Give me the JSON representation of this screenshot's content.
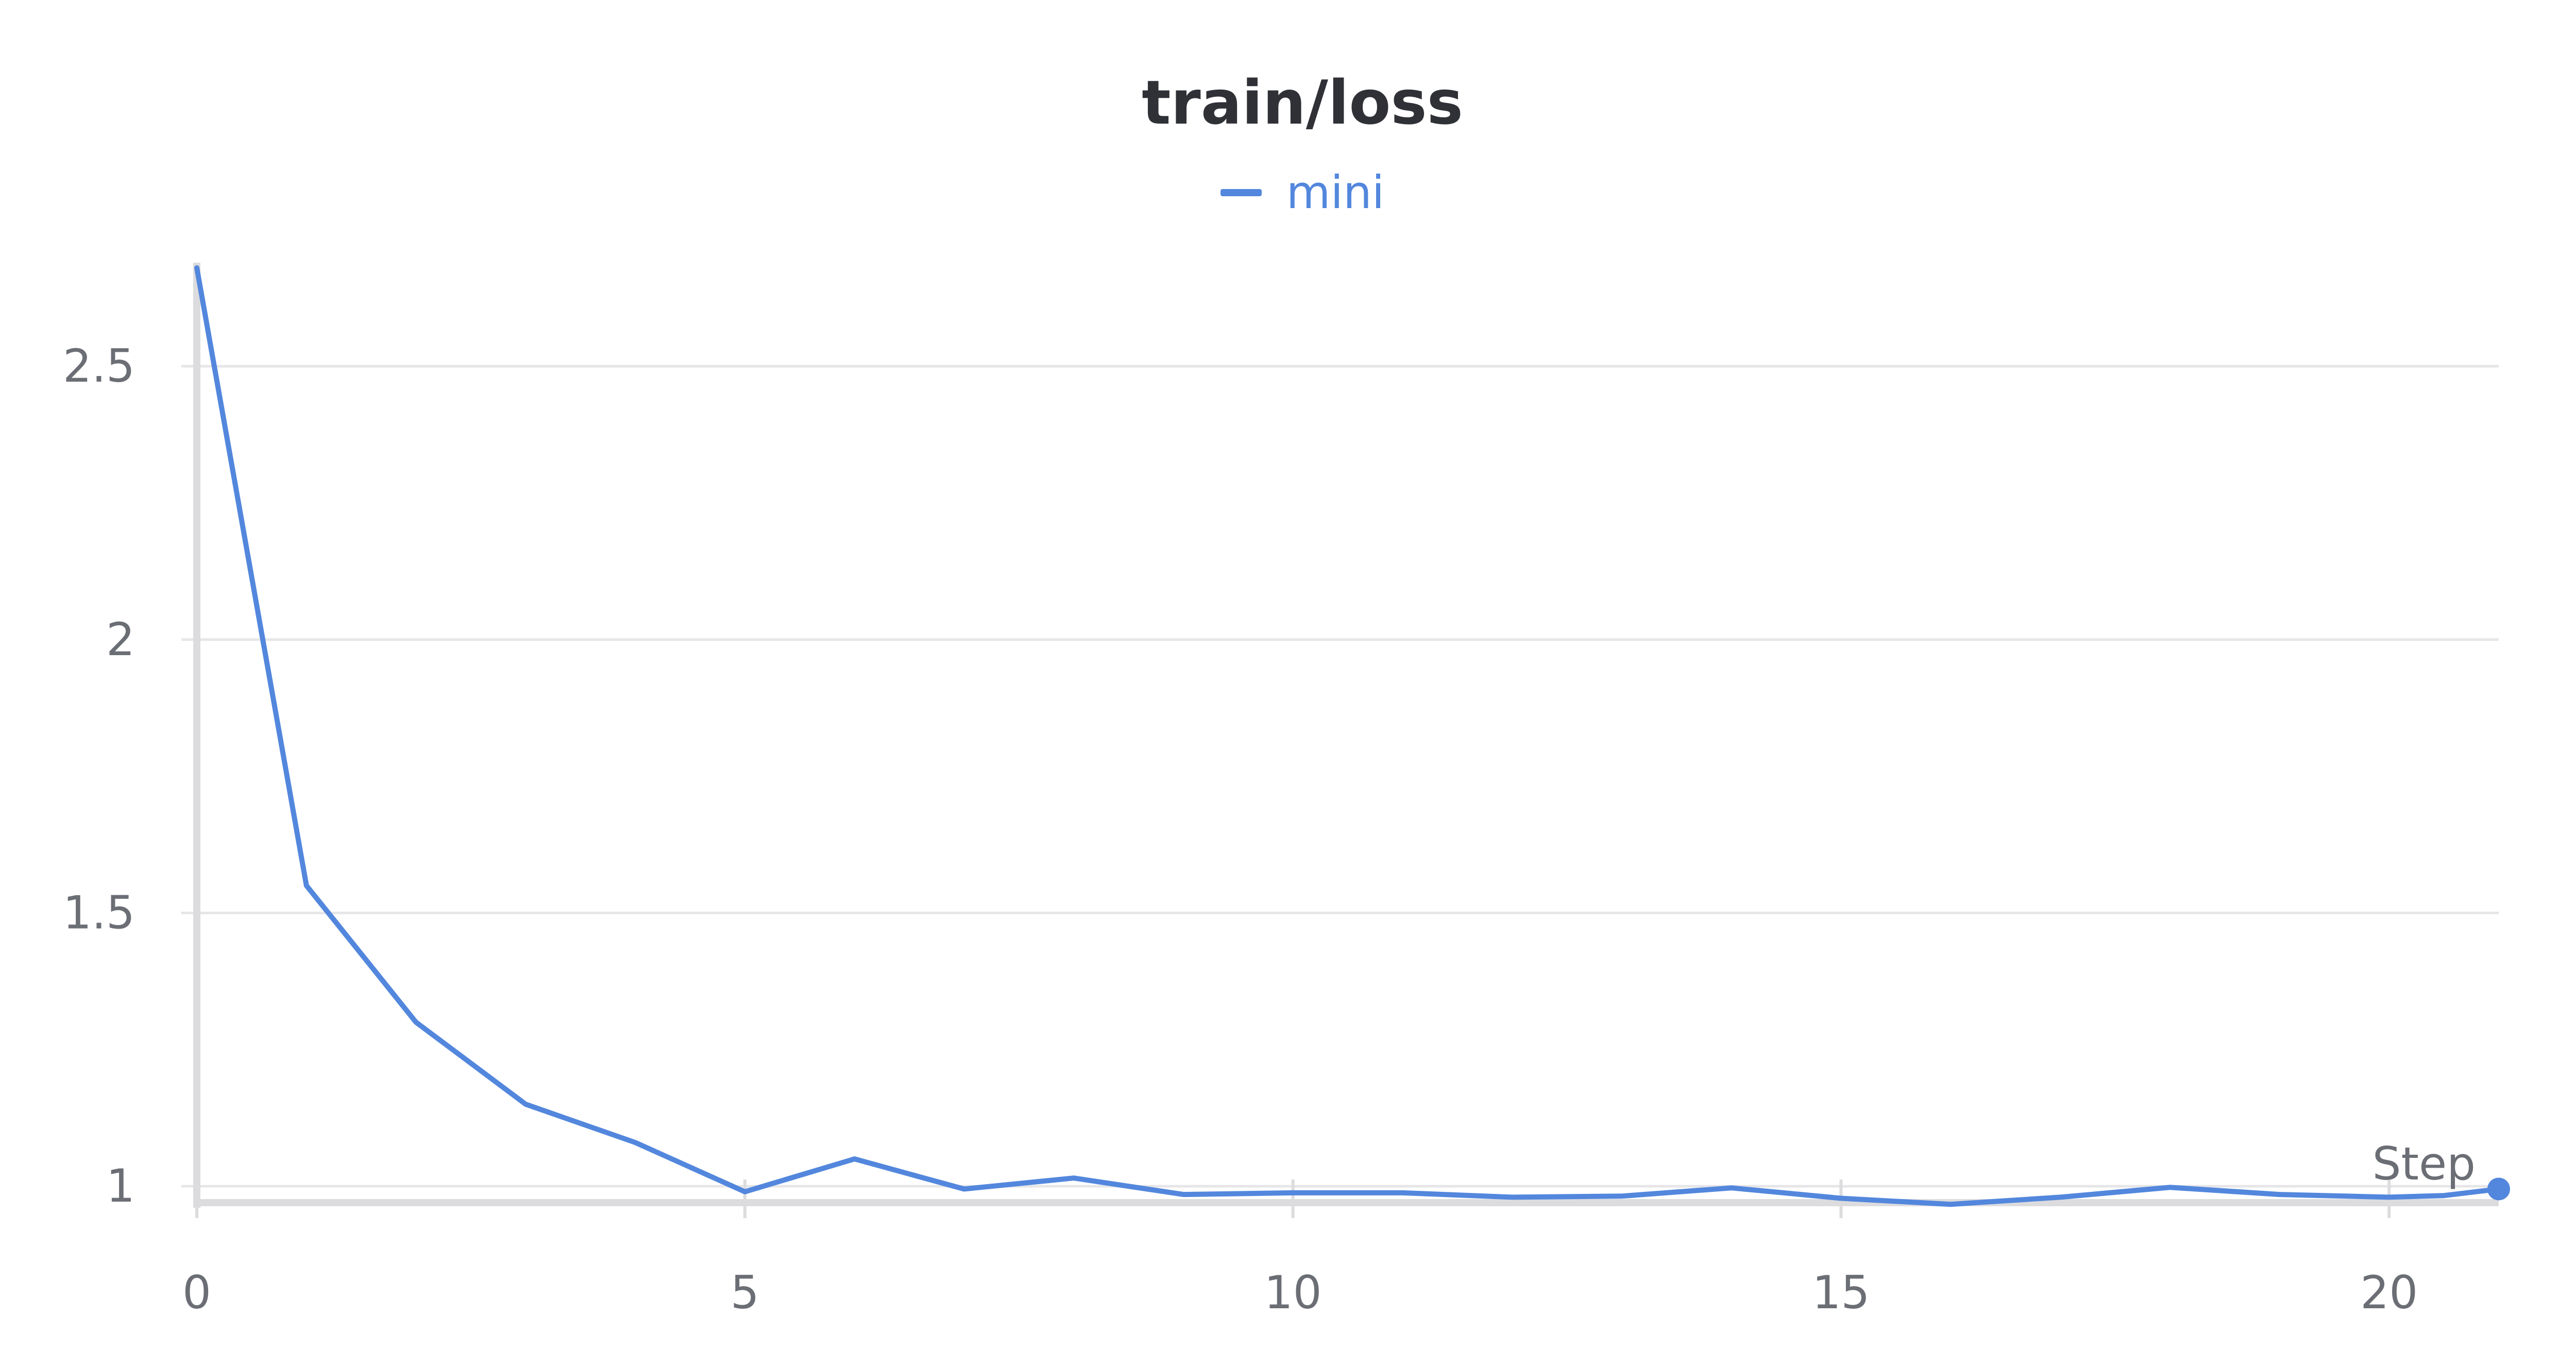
{
  "chart_data": {
    "type": "line",
    "title": "train/loss",
    "xlabel": "Step",
    "ylabel": "",
    "x": [
      0,
      1,
      2,
      3,
      4,
      5,
      6,
      7,
      8,
      9,
      10,
      11,
      12,
      13,
      14,
      15,
      16,
      17,
      18,
      19,
      20,
      20.5,
      21
    ],
    "series": [
      {
        "name": "mini",
        "color": "#5387dd",
        "values": [
          2.68,
          1.55,
          1.3,
          1.15,
          1.08,
          0.99,
          1.05,
          0.995,
          1.015,
          0.985,
          0.988,
          0.988,
          0.98,
          0.982,
          0.997,
          0.978,
          0.967,
          0.98,
          0.998,
          0.985,
          0.98,
          0.983,
          0.995
        ]
      }
    ],
    "xlim": [
      0,
      21
    ],
    "ylim": [
      0.97,
      2.68
    ],
    "xticks": [
      0,
      5,
      10,
      15,
      20
    ],
    "yticks": [
      1,
      1.5,
      2,
      2.5
    ],
    "ytick_labels": [
      "1",
      "1.5",
      "2",
      "2.5"
    ],
    "grid": true,
    "legend_position": "top-center",
    "end_marker": true
  },
  "colors": {
    "grid": "#e6e6e8",
    "axis": "#dcdcde",
    "text": "#6b6e74",
    "title": "#2f3136"
  }
}
